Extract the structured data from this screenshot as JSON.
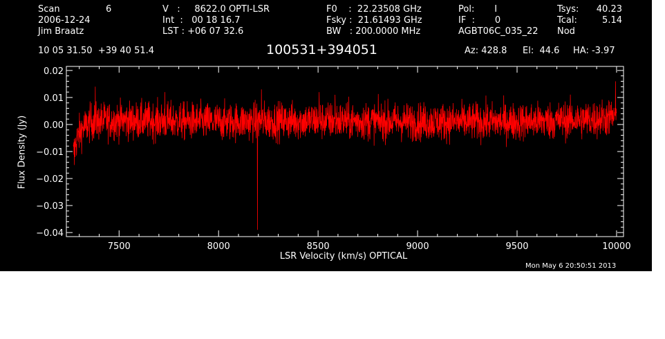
{
  "header": {
    "scan_label": "Scan",
    "scan_value": "6",
    "date": "2006-12-24",
    "observer": "Jim Braatz",
    "v_line": "V   :     8622.0 OPTI-LSR",
    "int_line": "Int  :   00 18 16.7",
    "lst_line": "LST : +06 07 32.6",
    "f0_line": "F0    :  22.23508 GHz",
    "fsky_line": "Fsky :  21.61493 GHz",
    "bw_line": "BW   : 200.0000 MHz",
    "pol_line": "Pol:       I",
    "if_line": "IF  :       0",
    "project": "AGBT06C_035_22",
    "tsys_label": "Tsys:",
    "tsys_value": "40.23",
    "tcal_label": "Tcal:",
    "tcal_value": "5.14",
    "nod": "Nod",
    "coords": "10 05 31.50  +39 40 51.4",
    "source": "100531+394051",
    "az": "Az: 428.8",
    "el": "El:  44.6",
    "ha": "HA: -3.97"
  },
  "timestamp": "Mon May  6 20:50:51 2013",
  "chart_data": {
    "type": "line",
    "xlabel": "LSR Velocity (km/s) OPTICAL",
    "ylabel": "Flux Density (Jy)",
    "xlim": [
      7235,
      10035
    ],
    "ylim": [
      -0.0415,
      0.0215
    ],
    "xticks": [
      7500,
      8000,
      8500,
      9000,
      9500,
      10000
    ],
    "xtick_labels": [
      "7500",
      "8000",
      "8500",
      "9000",
      "9500",
      "10000"
    ],
    "yticks": [
      -0.04,
      -0.03,
      -0.02,
      -0.01,
      0.0,
      0.01,
      0.02
    ],
    "ytick_labels": [
      "−0.04",
      "−0.03",
      "−0.02",
      "−0.01",
      "0.00",
      "0.01",
      "0.02"
    ],
    "series": [
      {
        "color": "#ff0000",
        "x_range": [
          7270,
          10000
        ],
        "baseline": [
          [
            7270,
            -0.011
          ],
          [
            7285,
            -0.006
          ],
          [
            7310,
            -0.002
          ],
          [
            7360,
            0.001
          ],
          [
            7500,
            0.0015
          ],
          [
            8000,
            0.001
          ],
          [
            8500,
            0.0015
          ],
          [
            9000,
            0.001
          ],
          [
            9500,
            0.001
          ],
          [
            9900,
            0.002
          ],
          [
            10000,
            0.003
          ]
        ],
        "noise_rms": 0.0035,
        "spikes": [
          [
            7275,
            -0.015
          ],
          [
            7380,
            0.014
          ],
          [
            7730,
            0.012
          ],
          [
            8195,
            -0.039
          ],
          [
            8215,
            0.013
          ],
          [
            8505,
            0.012
          ],
          [
            8585,
            0.011
          ],
          [
            9995,
            0.016
          ]
        ]
      }
    ]
  }
}
